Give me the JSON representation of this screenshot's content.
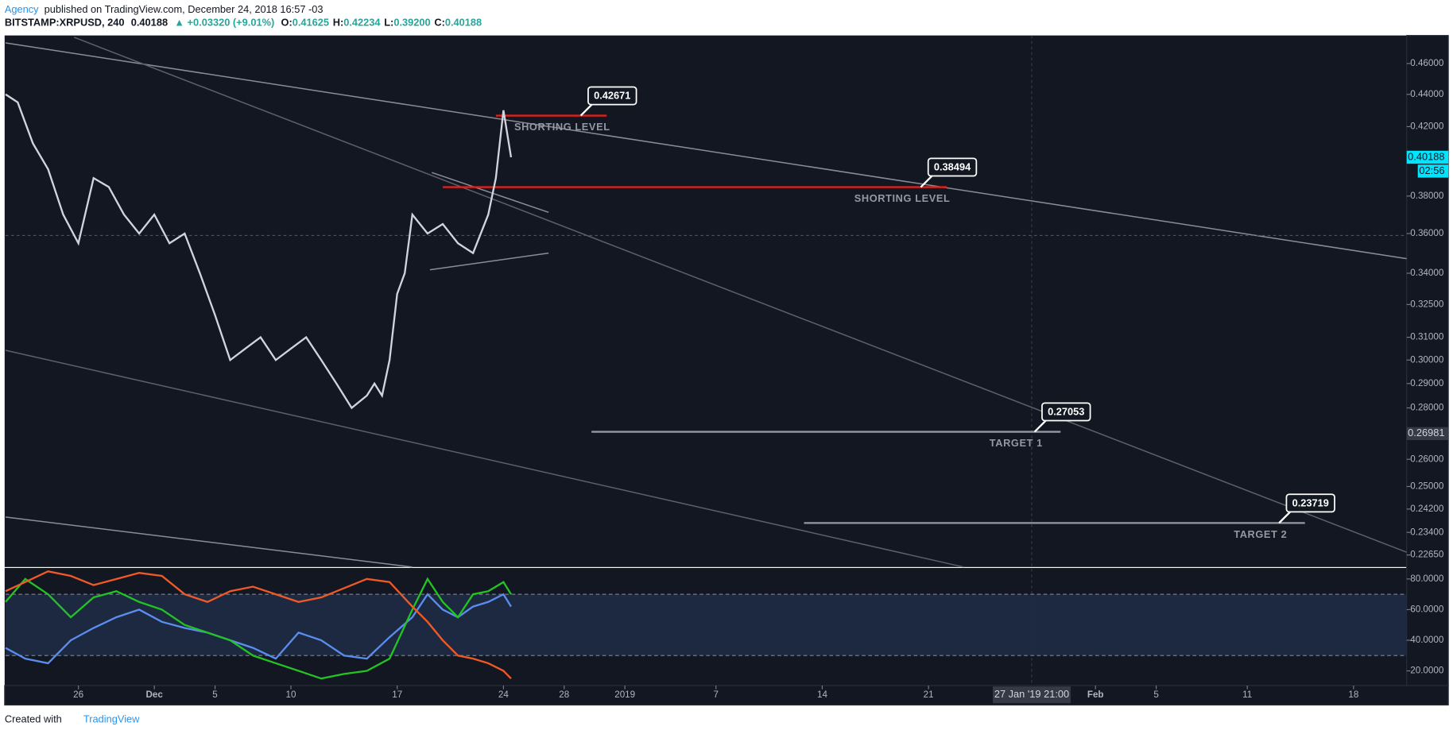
{
  "header": {
    "author": "Agency",
    "published": "published on TradingView.com, December 24, 2018 16:57 -03",
    "symbol": "BITSTAMP:XRPUSD, 240",
    "last": "0.40188",
    "change": "▲ +0.03320 (+9.01%)",
    "ohlc": [
      {
        "label": "O:",
        "value": "0.41625"
      },
      {
        "label": "H:",
        "value": "0.42234"
      },
      {
        "label": "L:",
        "value": "0.39200"
      },
      {
        "label": "C:",
        "value": "0.40188"
      }
    ]
  },
  "footer": {
    "created": "Created with",
    "brand": "TradingView"
  },
  "chart_data": [
    {
      "type": "line",
      "log_scale": true,
      "x": [
        -4.8,
        -4,
        -3,
        -2,
        -1,
        0,
        1,
        2,
        3,
        4,
        5,
        6,
        7,
        8,
        9,
        10,
        11,
        12,
        13,
        14,
        15,
        16,
        17,
        18,
        19,
        19.5,
        20,
        20.5,
        21,
        21.5,
        22,
        23,
        24,
        25,
        26,
        27,
        27.5,
        28,
        28.5
      ],
      "series": [
        {
          "color": "#d1d4dc",
          "values": [
            0.44,
            0.435,
            0.41,
            0.395,
            0.37,
            0.355,
            0.39,
            0.385,
            0.37,
            0.36,
            0.37,
            0.355,
            0.36,
            0.34,
            0.32,
            0.3,
            0.305,
            0.31,
            0.3,
            0.305,
            0.31,
            0.3,
            0.29,
            0.28,
            0.285,
            0.29,
            0.285,
            0.3,
            0.33,
            0.34,
            0.37,
            0.36,
            0.365,
            0.355,
            0.35,
            0.37,
            0.39,
            0.43,
            0.40188
          ]
        }
      ],
      "xlim": [
        -4.8,
        87.5
      ],
      "xticks": [
        {
          "value": 0,
          "label": "26"
        },
        {
          "value": 5,
          "label": "Dec"
        },
        {
          "value": 9,
          "label": "5"
        },
        {
          "value": 14,
          "label": "10"
        },
        {
          "value": 21,
          "label": "17"
        },
        {
          "value": 28,
          "label": "24"
        },
        {
          "value": 32,
          "label": "28"
        },
        {
          "value": 36,
          "label": "2019"
        },
        {
          "value": 42,
          "label": "7"
        },
        {
          "value": 49,
          "label": "14"
        },
        {
          "value": 56,
          "label": "21"
        },
        {
          "value": 67,
          "label": "Feb"
        },
        {
          "value": 71,
          "label": "5"
        },
        {
          "value": 77,
          "label": "11"
        },
        {
          "value": 84,
          "label": "18"
        }
      ],
      "crosshair": {
        "x": 62.8,
        "value": 0.359,
        "label": "27 Jan '19  21:00"
      },
      "ylim": [
        0.2226,
        0.479
      ],
      "yticks": [
        {
          "value": 0.46,
          "label": "0.46000"
        },
        {
          "value": 0.44,
          "label": "0.44000"
        },
        {
          "value": 0.42,
          "label": "0.42000"
        },
        {
          "value": 0.38,
          "label": "0.38000"
        },
        {
          "value": 0.36,
          "label": "0.36000"
        },
        {
          "value": 0.34,
          "label": "0.34000"
        },
        {
          "value": 0.325,
          "label": "0.32500"
        },
        {
          "value": 0.31,
          "label": "0.31000"
        },
        {
          "value": 0.3,
          "label": "0.30000"
        },
        {
          "value": 0.29,
          "label": "0.29000"
        },
        {
          "value": 0.28,
          "label": "0.28000"
        },
        {
          "value": 0.26,
          "label": "0.26000"
        },
        {
          "value": 0.25,
          "label": "0.25000"
        },
        {
          "value": 0.242,
          "label": "0.24200"
        },
        {
          "value": 0.234,
          "label": "0.23400"
        },
        {
          "value": 0.2265,
          "label": "0.22650"
        }
      ],
      "levels": [
        {
          "value": 0.42671,
          "note": "SHORTING LEVEL",
          "x": [
            27.5,
            34.8
          ],
          "color": "#e0201b"
        },
        {
          "value": 0.38494,
          "note": "SHORTING LEVEL",
          "x": [
            24,
            57.2
          ],
          "color": "#e0201b"
        },
        {
          "value": 0.27053,
          "note": "TARGET 1",
          "x": [
            33.8,
            64.7
          ],
          "color": "#9598a1"
        },
        {
          "value": 0.23719,
          "note": "TARGET 2",
          "x": [
            47.8,
            80.8
          ],
          "color": "#9598a1"
        }
      ],
      "price_tags": [
        {
          "value": 0.40188,
          "color": "#00e5ff",
          "countdown": "02:56"
        },
        {
          "value": 0.26981,
          "color": "#363a45"
        }
      ]
    },
    {
      "type": "line",
      "x": [
        -4.8,
        -3.5,
        -2,
        -0.5,
        1,
        2.5,
        4,
        5.5,
        7,
        8.5,
        10,
        11.5,
        13,
        14.5,
        16,
        17.5,
        19,
        20.5,
        22,
        23,
        24,
        25,
        26,
        27,
        28,
        28.5
      ],
      "series": [
        {
          "color": "#5b8def",
          "values": [
            35,
            28,
            25,
            40,
            48,
            55,
            60,
            52,
            48,
            45,
            40,
            35,
            28,
            45,
            40,
            30,
            28,
            42,
            55,
            70,
            60,
            55,
            62,
            65,
            70,
            62
          ]
        },
        {
          "color": "#22c322",
          "values": [
            65,
            80,
            70,
            55,
            68,
            72,
            65,
            60,
            50,
            45,
            40,
            30,
            25,
            20,
            15,
            18,
            20,
            28,
            60,
            80,
            65,
            55,
            70,
            72,
            78,
            70
          ]
        },
        {
          "color": "#ef5a28",
          "values": [
            72,
            78,
            85,
            82,
            76,
            80,
            84,
            82,
            70,
            65,
            72,
            75,
            70,
            65,
            68,
            74,
            80,
            78,
            62,
            52,
            40,
            30,
            28,
            25,
            20,
            15
          ]
        }
      ],
      "band": [
        30,
        70
      ],
      "ylim": [
        10.4,
        87.2
      ],
      "yticks": [
        {
          "value": 80,
          "label": "80.0000"
        },
        {
          "value": 60,
          "label": "60.0000"
        },
        {
          "value": 40,
          "label": "40.0000"
        },
        {
          "value": 20,
          "label": "20.0000"
        }
      ]
    }
  ]
}
